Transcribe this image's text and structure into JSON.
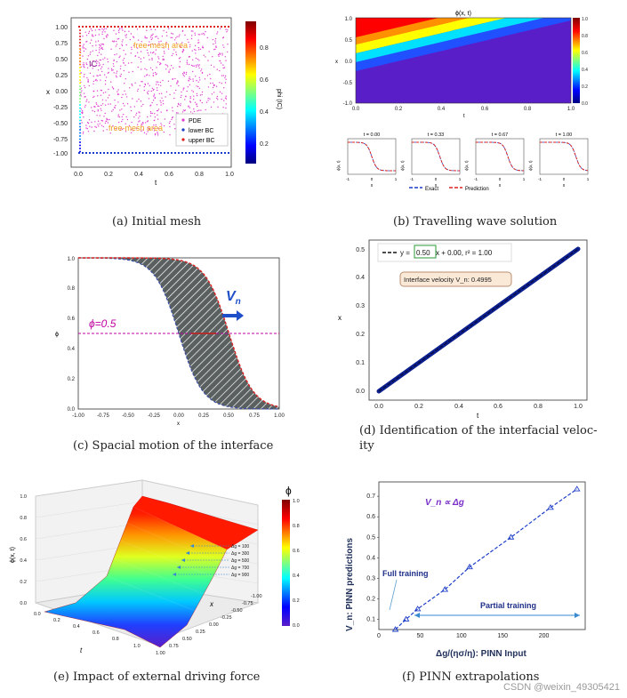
{
  "captions": {
    "a": "(a) Initial mesh",
    "b": "(b) Travelling wave solution",
    "c": "(c) Spacial motion of the interface",
    "d": "(d) Identification of the interfacial veloc-\nity",
    "e": "(e) Impact of external driving force",
    "f": "(f) PINN extrapolations"
  },
  "watermark": "CSDN @weixin_49305421",
  "panel_a": {
    "ylabel": "x",
    "xlabel": "t",
    "cbar_label": "phi (IC)",
    "ic_label": "IC",
    "area_label_top": "free-mesh area",
    "area_label_bottom": "free-mesh area",
    "legend": [
      "PDE",
      "lower BC",
      "upper BC"
    ],
    "xticks": [
      "0.0",
      "0.2",
      "0.4",
      "0.6",
      "0.8",
      "1.0"
    ],
    "yticks": [
      "1.00",
      "0.75",
      "0.50",
      "0.25",
      "0.00",
      "-0.25",
      "-0.50",
      "-0.75",
      "-1.00"
    ],
    "cbar_ticks": [
      "0.8",
      "0.6",
      "0.4",
      "0.2"
    ]
  },
  "panel_b": {
    "title": "ϕ(x, t)",
    "xlabel": "t",
    "ylabel": "x",
    "xticks": [
      "0.0",
      "0.2",
      "0.4",
      "0.6",
      "0.8",
      "1.0"
    ],
    "yticks": [
      "1.0",
      "0.5",
      "0.0",
      "-0.5",
      "-1.0"
    ],
    "cbar_ticks": [
      "1.0",
      "0.8",
      "0.6",
      "0.4",
      "0.2",
      "0.0"
    ],
    "subplots": [
      {
        "title": "t = 0.00"
      },
      {
        "title": "t = 0.33"
      },
      {
        "title": "t = 0.67"
      },
      {
        "title": "t = 1.00"
      }
    ],
    "sub_ylabel": "ϕ(x, t)",
    "sub_xlabel": "x",
    "sub_xticks": [
      "-1",
      "0",
      "1"
    ],
    "legend": [
      "Exact",
      "Prediction"
    ]
  },
  "panel_c": {
    "ylabel": "ϕ",
    "xlabel": "x",
    "annotation": "ϕ=0.5",
    "velocity_label": "V",
    "velocity_sub": "n",
    "xticks": [
      "-1.00",
      "-0.75",
      "-0.50",
      "-0.25",
      "0.00",
      "0.25",
      "0.50",
      "0.75",
      "1.00"
    ],
    "yticks": [
      "0.0",
      "0.2",
      "0.4",
      "0.6",
      "0.8",
      "1.0"
    ]
  },
  "panel_d": {
    "legend_prefix": "y =",
    "legend_slope": "0.50",
    "legend_suffix": "x + 0.00, r² = 1.00",
    "velocity_box": "Interface velocity V_n: 0.4995",
    "xlabel": "t",
    "ylabel": "x",
    "xticks": [
      "0.0",
      "0.2",
      "0.4",
      "0.6",
      "0.8",
      "1.0"
    ],
    "yticks": [
      "0.0",
      "0.1",
      "0.2",
      "0.3",
      "0.4",
      "0.5"
    ]
  },
  "panel_e": {
    "zlabel": "ϕ(x, t)",
    "cbar_title": "ϕ",
    "xlabel": "x",
    "tlabel": "t",
    "t_ticks": [
      "0.0",
      "0.2",
      "0.4",
      "0.6",
      "0.8",
      "1.0"
    ],
    "x_ticks": [
      "1.00",
      "0.75",
      "0.50",
      "0.25",
      "0.00",
      "-0.25",
      "-0.50",
      "-0.75",
      "-1.00"
    ],
    "z_ticks": [
      "0.0",
      "0.2",
      "0.4",
      "0.6",
      "0.8",
      "1.0"
    ],
    "cbar_ticks": [
      "1.0",
      "0.8",
      "0.6",
      "0.4",
      "0.2",
      "0.0"
    ],
    "dg_labels": [
      "Δg = 100",
      "Δg = 300",
      "Δg = 500",
      "Δg = 700",
      "Δg = 900"
    ]
  },
  "chart_data": {
    "type": "line",
    "title": "",
    "xlabel": "Δg/(ησ/η): PINN Input",
    "ylabel": "V_n: PINN predictions",
    "annotation": "V_n ∝ Δg",
    "full_training_label": "Full training",
    "partial_training_label": "Partial training",
    "xlim": [
      0,
      250
    ],
    "ylim": [
      0.05,
      0.77
    ],
    "xticks": [
      "0",
      "50",
      "100",
      "150",
      "200"
    ],
    "yticks": [
      "0.1",
      "0.2",
      "0.3",
      "0.4",
      "0.5",
      "0.6",
      "0.7"
    ],
    "series": [
      {
        "values": [
          [
            20,
            0.05
          ],
          [
            33,
            0.1
          ],
          [
            47,
            0.15
          ],
          [
            80,
            0.245
          ],
          [
            110,
            0.355
          ],
          [
            160,
            0.5
          ],
          [
            208,
            0.645
          ],
          [
            240,
            0.735
          ]
        ]
      }
    ]
  },
  "colors": {
    "jet": [
      "#00007f",
      "#0000ff",
      "#007fff",
      "#00ffff",
      "#7fff7f",
      "#ffff00",
      "#ff7f00",
      "#ff0000",
      "#7f0000"
    ],
    "accent_blue": "#1f3fa8",
    "magenta": "#c000a0"
  }
}
